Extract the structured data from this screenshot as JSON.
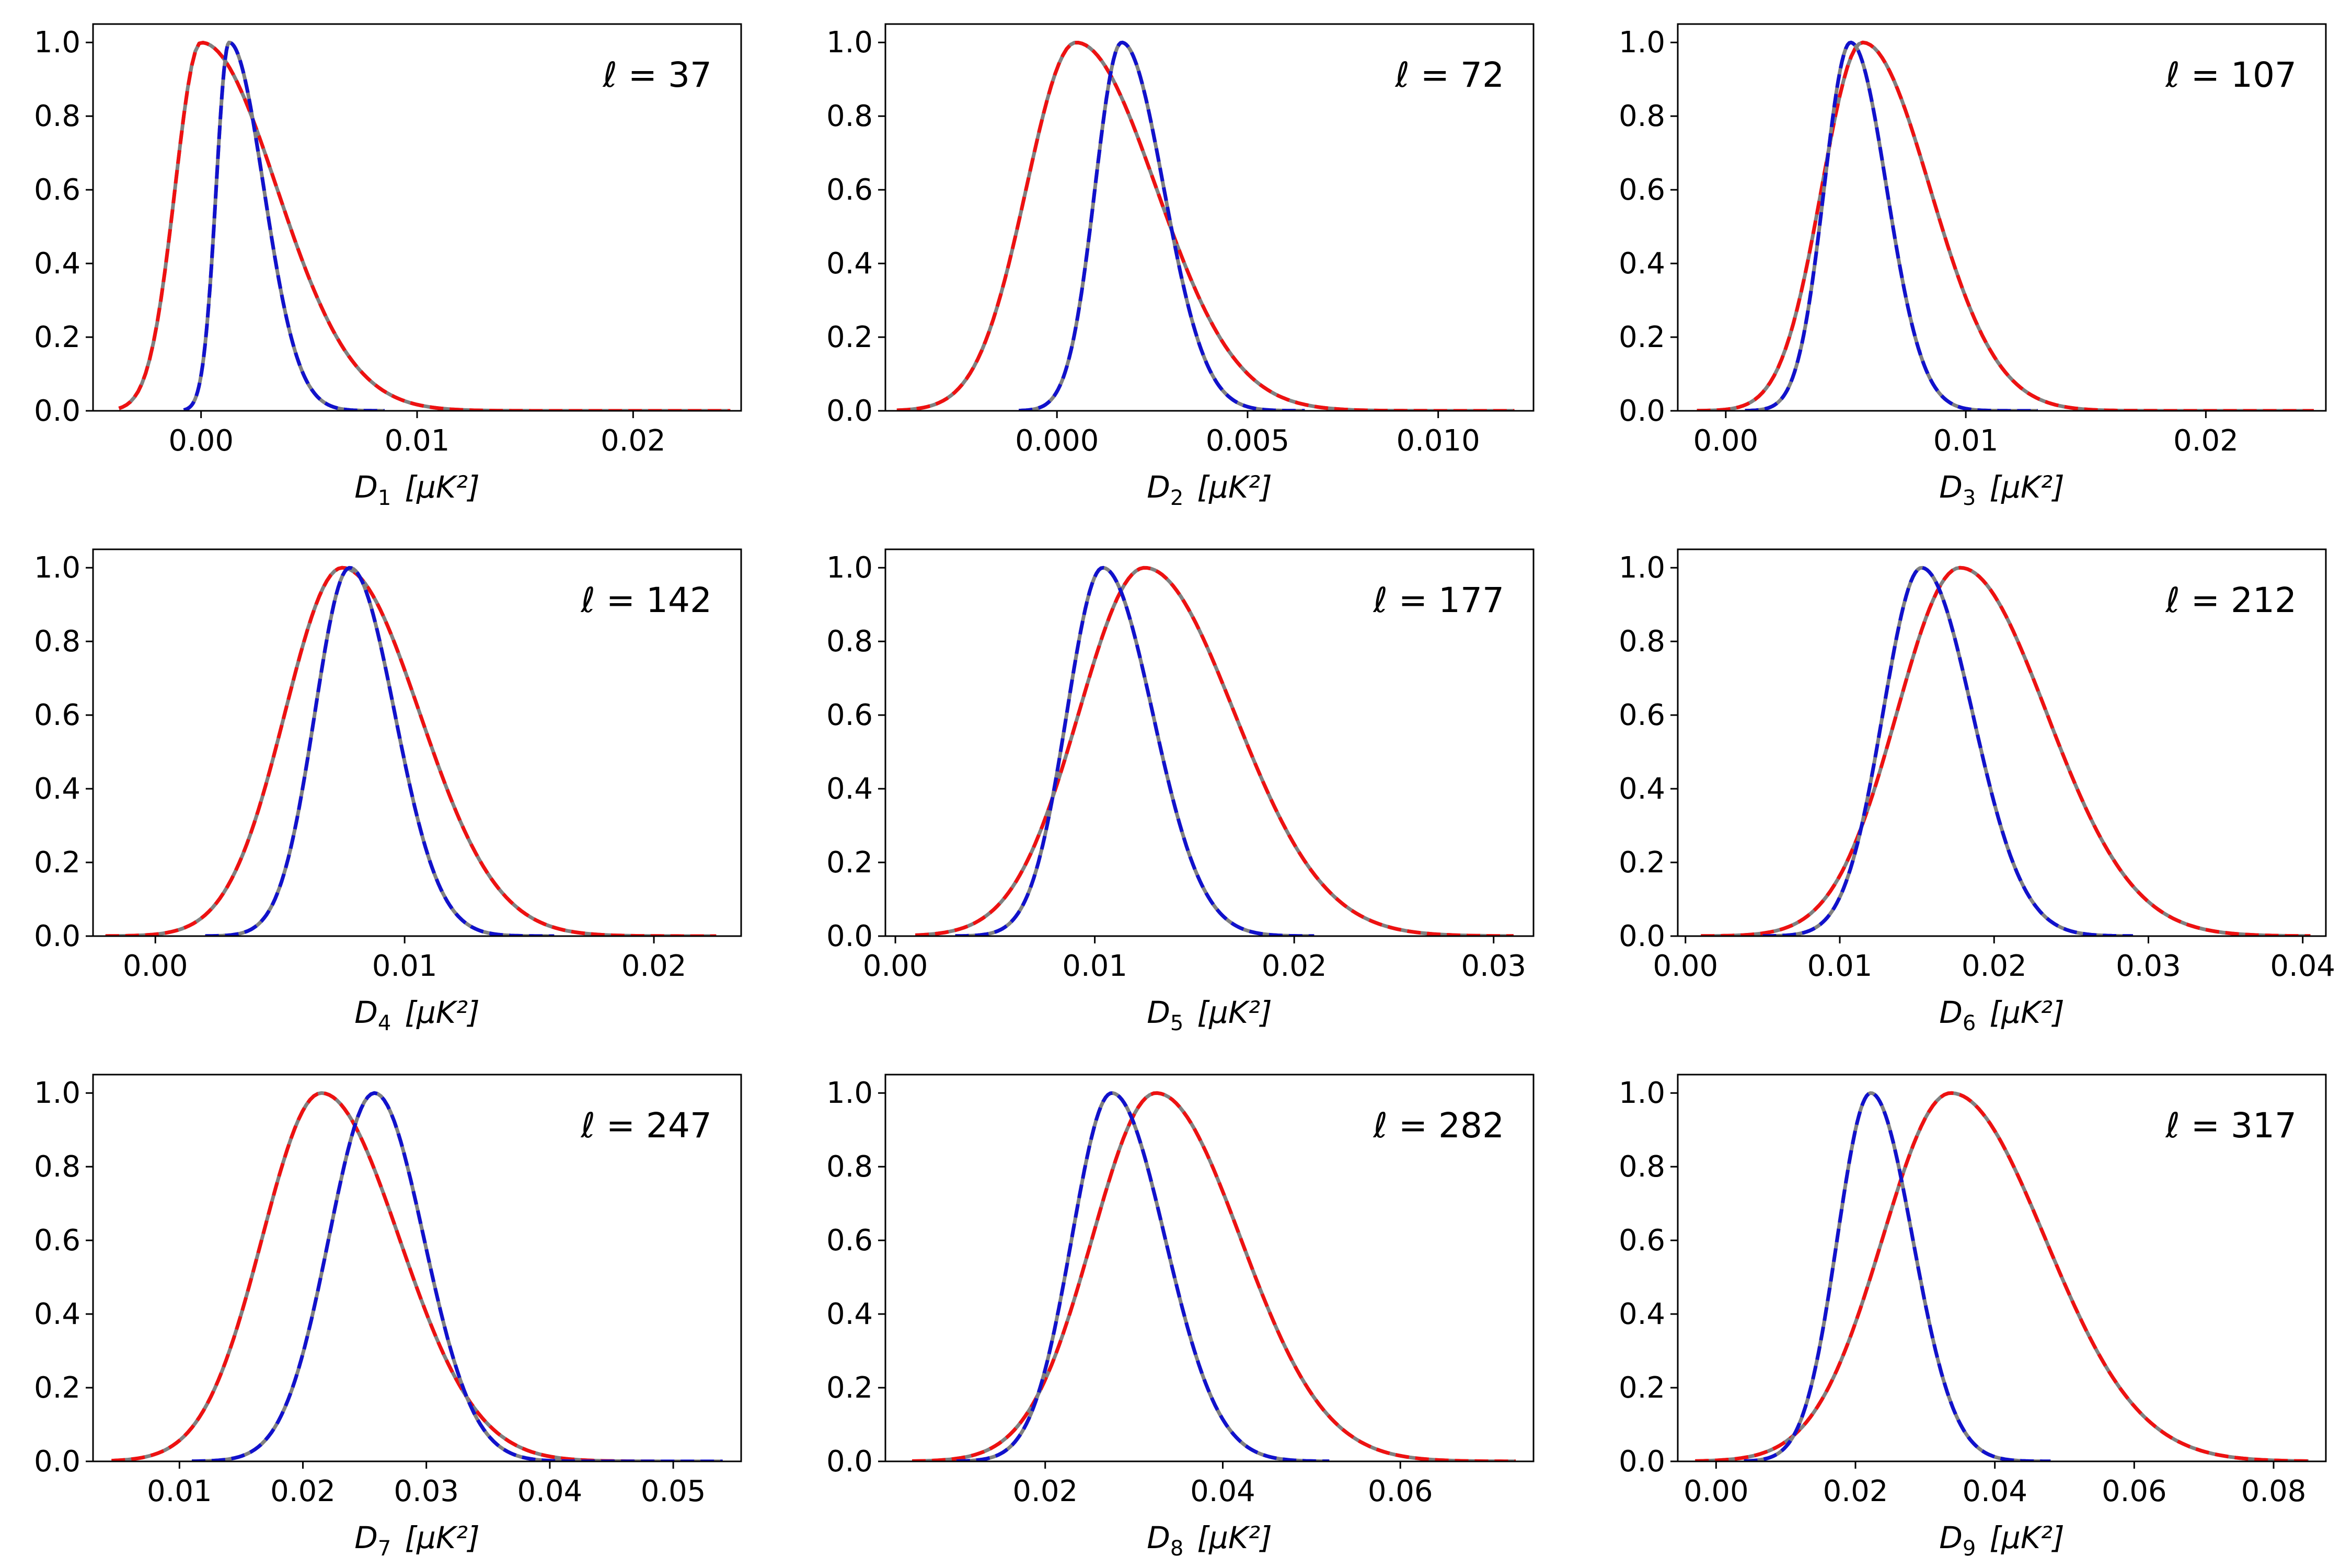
{
  "chart_data": [
    {
      "type": "line",
      "index": 0,
      "ell": "ℓ = 37",
      "xlabel_main": "D",
      "xlabel_sub": "1",
      "xlabel_unit": "[μK²]",
      "xlim": [
        -0.005,
        0.025
      ],
      "ylim": [
        0,
        1.05
      ],
      "xticks": [
        0.0,
        0.01,
        0.02
      ],
      "xtick_labels": [
        "0.00",
        "0.01",
        "0.02"
      ],
      "yticks": [
        0,
        0.2,
        0.4,
        0.6,
        0.8,
        1.0
      ],
      "ytick_labels": [
        "0.0",
        "0.2",
        "0.4",
        "0.6",
        "0.8",
        "1.0"
      ],
      "series": [
        {
          "color": "#808080",
          "style": "solid",
          "mu": 0,
          "sl": 0.0012,
          "sr": 0.0035,
          "xmin": -0.0038,
          "xmax": 0.0245,
          "tail": 0.015
        },
        {
          "color": "#ee1111",
          "style": "dashed",
          "mu": 0,
          "sl": 0.0012,
          "sr": 0.0035,
          "xmin": -0.0038,
          "xmax": 0.0245
        },
        {
          "color": "#808080",
          "style": "solid",
          "mu": 0.0013,
          "sl": 0.0006,
          "sr": 0.0016,
          "xmin": -0.0008,
          "xmax": 0.0085
        },
        {
          "color": "#1111cc",
          "style": "dashed",
          "mu": 0.0013,
          "sl": 0.0006,
          "sr": 0.0016,
          "xmin": -0.0008,
          "xmax": 0.0085
        }
      ]
    },
    {
      "type": "line",
      "index": 1,
      "ell": "ℓ = 72",
      "xlabel_main": "D",
      "xlabel_sub": "2",
      "xlabel_unit": "[μK²]",
      "xlim": [
        -0.0045,
        0.0125
      ],
      "ylim": [
        0,
        1.05
      ],
      "xticks": [
        0.0,
        0.005,
        0.01
      ],
      "xtick_labels": [
        "0.000",
        "0.005",
        "0.010"
      ],
      "yticks": [
        0,
        0.2,
        0.4,
        0.6,
        0.8,
        1.0
      ],
      "ytick_labels": [
        "0.0",
        "0.2",
        "0.4",
        "0.6",
        "0.8",
        "1.0"
      ],
      "series": [
        {
          "color": "#808080",
          "style": "solid",
          "mu": 0.0005,
          "sl": 0.0013,
          "sr": 0.0021,
          "xmin": -0.0042,
          "xmax": 0.012
        },
        {
          "color": "#ee1111",
          "style": "dashed",
          "mu": 0.0005,
          "sl": 0.0013,
          "sr": 0.0021,
          "xmin": -0.0042,
          "xmax": 0.012
        },
        {
          "color": "#808080",
          "style": "solid",
          "mu": 0.0017,
          "sl": 0.0007,
          "sr": 0.0011,
          "xmin": -0.001,
          "xmax": 0.0065
        },
        {
          "color": "#1111cc",
          "style": "dashed",
          "mu": 0.0017,
          "sl": 0.0007,
          "sr": 0.0011,
          "xmin": -0.001,
          "xmax": 0.0065
        }
      ]
    },
    {
      "type": "line",
      "index": 2,
      "ell": "ℓ = 107",
      "xlabel_main": "D",
      "xlabel_sub": "3",
      "xlabel_unit": "[μK²]",
      "xlim": [
        -0.002,
        0.025
      ],
      "ylim": [
        0,
        1.05
      ],
      "xticks": [
        0.0,
        0.01,
        0.02
      ],
      "xtick_labels": [
        "0.00",
        "0.01",
        "0.02"
      ],
      "yticks": [
        0,
        0.2,
        0.4,
        0.6,
        0.8,
        1.0
      ],
      "ytick_labels": [
        "0.0",
        "0.2",
        "0.4",
        "0.6",
        "0.8",
        "1.0"
      ],
      "series": [
        {
          "color": "#808080",
          "style": "solid",
          "mu": 0.0057,
          "sl": 0.0017,
          "sr": 0.0028,
          "xmin": -0.0012,
          "xmax": 0.0245
        },
        {
          "color": "#ee1111",
          "style": "dashed",
          "mu": 0.0057,
          "sl": 0.0017,
          "sr": 0.0028,
          "xmin": -0.0012,
          "xmax": 0.0245
        },
        {
          "color": "#808080",
          "style": "solid",
          "mu": 0.0052,
          "sl": 0.0011,
          "sr": 0.0015,
          "xmin": 0.0008,
          "xmax": 0.013
        },
        {
          "color": "#1111cc",
          "style": "dashed",
          "mu": 0.0052,
          "sl": 0.0011,
          "sr": 0.0015,
          "xmin": 0.0008,
          "xmax": 0.013
        }
      ]
    },
    {
      "type": "line",
      "index": 3,
      "ell": "ℓ = 142",
      "xlabel_main": "D",
      "xlabel_sub": "4",
      "xlabel_unit": "[μK²]",
      "xlim": [
        -0.0025,
        0.0235
      ],
      "ylim": [
        0,
        1.05
      ],
      "xticks": [
        0.0,
        0.01,
        0.02
      ],
      "xtick_labels": [
        "0.00",
        "0.01",
        "0.02"
      ],
      "yticks": [
        0,
        0.2,
        0.4,
        0.6,
        0.8,
        1.0
      ],
      "ytick_labels": [
        "0.0",
        "0.2",
        "0.4",
        "0.6",
        "0.8",
        "1.0"
      ],
      "series": [
        {
          "color": "#808080",
          "style": "solid",
          "mu": 0.0075,
          "sl": 0.0023,
          "sr": 0.0031,
          "xmin": -0.002,
          "xmax": 0.0225
        },
        {
          "color": "#ee1111",
          "style": "dashed",
          "mu": 0.0075,
          "sl": 0.0023,
          "sr": 0.0031,
          "xmin": -0.002,
          "xmax": 0.0225
        },
        {
          "color": "#808080",
          "style": "solid",
          "mu": 0.0078,
          "sl": 0.0014,
          "sr": 0.0018,
          "xmin": 0.002,
          "xmax": 0.016
        },
        {
          "color": "#1111cc",
          "style": "dashed",
          "mu": 0.0078,
          "sl": 0.0014,
          "sr": 0.0018,
          "xmin": 0.002,
          "xmax": 0.016
        }
      ]
    },
    {
      "type": "line",
      "index": 4,
      "ell": "ℓ = 177",
      "xlabel_main": "D",
      "xlabel_sub": "5",
      "xlabel_unit": "[μK²]",
      "xlim": [
        -0.0005,
        0.032
      ],
      "ylim": [
        0,
        1.05
      ],
      "xticks": [
        0.0,
        0.01,
        0.02,
        0.03
      ],
      "xtick_labels": [
        "0.00",
        "0.01",
        "0.02",
        "0.03"
      ],
      "yticks": [
        0,
        0.2,
        0.4,
        0.6,
        0.8,
        1.0
      ],
      "ytick_labels": [
        "0.0",
        "0.2",
        "0.4",
        "0.6",
        "0.8",
        "1.0"
      ],
      "series": [
        {
          "color": "#808080",
          "style": "solid",
          "mu": 0.0125,
          "sl": 0.0033,
          "sr": 0.0045,
          "xmin": 0.001,
          "xmax": 0.031
        },
        {
          "color": "#ee1111",
          "style": "dashed",
          "mu": 0.0125,
          "sl": 0.0033,
          "sr": 0.0045,
          "xmin": 0.001,
          "xmax": 0.031
        },
        {
          "color": "#808080",
          "style": "solid",
          "mu": 0.0104,
          "sl": 0.0018,
          "sr": 0.0025,
          "xmin": 0.003,
          "xmax": 0.021
        },
        {
          "color": "#1111cc",
          "style": "dashed",
          "mu": 0.0104,
          "sl": 0.0018,
          "sr": 0.0025,
          "xmin": 0.003,
          "xmax": 0.021
        }
      ]
    },
    {
      "type": "line",
      "index": 5,
      "ell": "ℓ = 212",
      "xlabel_main": "D",
      "xlabel_sub": "6",
      "xlabel_unit": "[μK²]",
      "xlim": [
        -0.0005,
        0.0415
      ],
      "ylim": [
        0,
        1.05
      ],
      "xticks": [
        0.0,
        0.01,
        0.02,
        0.03,
        0.04
      ],
      "xtick_labels": [
        "0.00",
        "0.01",
        "0.02",
        "0.03",
        "0.04"
      ],
      "yticks": [
        0,
        0.2,
        0.4,
        0.6,
        0.8,
        1.0
      ],
      "ytick_labels": [
        "0.0",
        "0.2",
        "0.4",
        "0.6",
        "0.8",
        "1.0"
      ],
      "series": [
        {
          "color": "#808080",
          "style": "solid",
          "mu": 0.0178,
          "sl": 0.0041,
          "sr": 0.0056,
          "xmin": 0.001,
          "xmax": 0.0405
        },
        {
          "color": "#ee1111",
          "style": "dashed",
          "mu": 0.0178,
          "sl": 0.0041,
          "sr": 0.0056,
          "xmin": 0.001,
          "xmax": 0.0405
        },
        {
          "color": "#808080",
          "style": "solid",
          "mu": 0.0153,
          "sl": 0.0025,
          "sr": 0.0033,
          "xmin": 0.005,
          "xmax": 0.029
        },
        {
          "color": "#1111cc",
          "style": "dashed",
          "mu": 0.0153,
          "sl": 0.0025,
          "sr": 0.0033,
          "xmin": 0.005,
          "xmax": 0.029
        }
      ]
    },
    {
      "type": "line",
      "index": 6,
      "ell": "ℓ = 247",
      "xlabel_main": "D",
      "xlabel_sub": "7",
      "xlabel_unit": "[μK²]",
      "xlim": [
        0.003,
        0.0555
      ],
      "ylim": [
        0,
        1.05
      ],
      "xticks": [
        0.01,
        0.02,
        0.03,
        0.04,
        0.05
      ],
      "xtick_labels": [
        "0.01",
        "0.02",
        "0.03",
        "0.04",
        "0.05"
      ],
      "yticks": [
        0,
        0.2,
        0.4,
        0.6,
        0.8,
        1.0
      ],
      "ytick_labels": [
        "0.0",
        "0.2",
        "0.4",
        "0.6",
        "0.8",
        "1.0"
      ],
      "series": [
        {
          "color": "#808080",
          "style": "solid",
          "mu": 0.0215,
          "sl": 0.0048,
          "sr": 0.0063,
          "xmin": 0.0045,
          "xmax": 0.054
        },
        {
          "color": "#ee1111",
          "style": "dashed",
          "mu": 0.0215,
          "sl": 0.0048,
          "sr": 0.0063,
          "xmin": 0.0045,
          "xmax": 0.054
        },
        {
          "color": "#808080",
          "style": "solid",
          "mu": 0.0258,
          "sl": 0.0037,
          "sr": 0.004,
          "xmin": 0.011,
          "xmax": 0.054
        },
        {
          "color": "#1111cc",
          "style": "dashed",
          "mu": 0.0258,
          "sl": 0.0037,
          "sr": 0.004,
          "xmin": 0.011,
          "xmax": 0.054
        }
      ]
    },
    {
      "type": "line",
      "index": 7,
      "ell": "ℓ = 282",
      "xlabel_main": "D",
      "xlabel_sub": "8",
      "xlabel_unit": "[μK²]",
      "xlim": [
        0.002,
        0.075
      ],
      "ylim": [
        0,
        1.05
      ],
      "xticks": [
        0.02,
        0.04,
        0.06
      ],
      "xtick_labels": [
        "0.02",
        "0.04",
        "0.06"
      ],
      "yticks": [
        0,
        0.2,
        0.4,
        0.6,
        0.8,
        1.0
      ],
      "ytick_labels": [
        "0.0",
        "0.2",
        "0.4",
        "0.6",
        "0.8",
        "1.0"
      ],
      "series": [
        {
          "color": "#808080",
          "style": "solid",
          "mu": 0.0325,
          "sl": 0.0072,
          "sr": 0.0095,
          "xmin": 0.005,
          "xmax": 0.073
        },
        {
          "color": "#ee1111",
          "style": "dashed",
          "mu": 0.0325,
          "sl": 0.0072,
          "sr": 0.0095,
          "xmin": 0.005,
          "xmax": 0.073
        },
        {
          "color": "#808080",
          "style": "solid",
          "mu": 0.0275,
          "sl": 0.0045,
          "sr": 0.006,
          "xmin": 0.01,
          "xmax": 0.052
        },
        {
          "color": "#1111cc",
          "style": "dashed",
          "mu": 0.0275,
          "sl": 0.0045,
          "sr": 0.006,
          "xmin": 0.01,
          "xmax": 0.052
        }
      ]
    },
    {
      "type": "line",
      "index": 8,
      "ell": "ℓ = 317",
      "xlabel_main": "D",
      "xlabel_sub": "9",
      "xlabel_unit": "[μK²]",
      "xlim": [
        -0.0055,
        0.0875
      ],
      "ylim": [
        0,
        1.05
      ],
      "xticks": [
        0.0,
        0.02,
        0.04,
        0.06,
        0.08
      ],
      "xtick_labels": [
        "0.00",
        "0.02",
        "0.04",
        "0.06",
        "0.08"
      ],
      "yticks": [
        0,
        0.2,
        0.4,
        0.6,
        0.8,
        1.0
      ],
      "ytick_labels": [
        "0.0",
        "0.2",
        "0.4",
        "0.6",
        "0.8",
        "1.0"
      ],
      "series": [
        {
          "color": "#808080",
          "style": "solid",
          "mu": 0.0337,
          "sl": 0.0098,
          "sr": 0.0135,
          "xmin": -0.003,
          "xmax": 0.085
        },
        {
          "color": "#ee1111",
          "style": "dashed",
          "mu": 0.0337,
          "sl": 0.0098,
          "sr": 0.0135,
          "xmin": -0.003,
          "xmax": 0.085
        },
        {
          "color": "#808080",
          "style": "solid",
          "mu": 0.0222,
          "sl": 0.0048,
          "sr": 0.006,
          "xmin": 0.004,
          "xmax": 0.048
        },
        {
          "color": "#1111cc",
          "style": "dashed",
          "mu": 0.0222,
          "sl": 0.0048,
          "sr": 0.006,
          "xmin": 0.004,
          "xmax": 0.048
        }
      ]
    }
  ]
}
